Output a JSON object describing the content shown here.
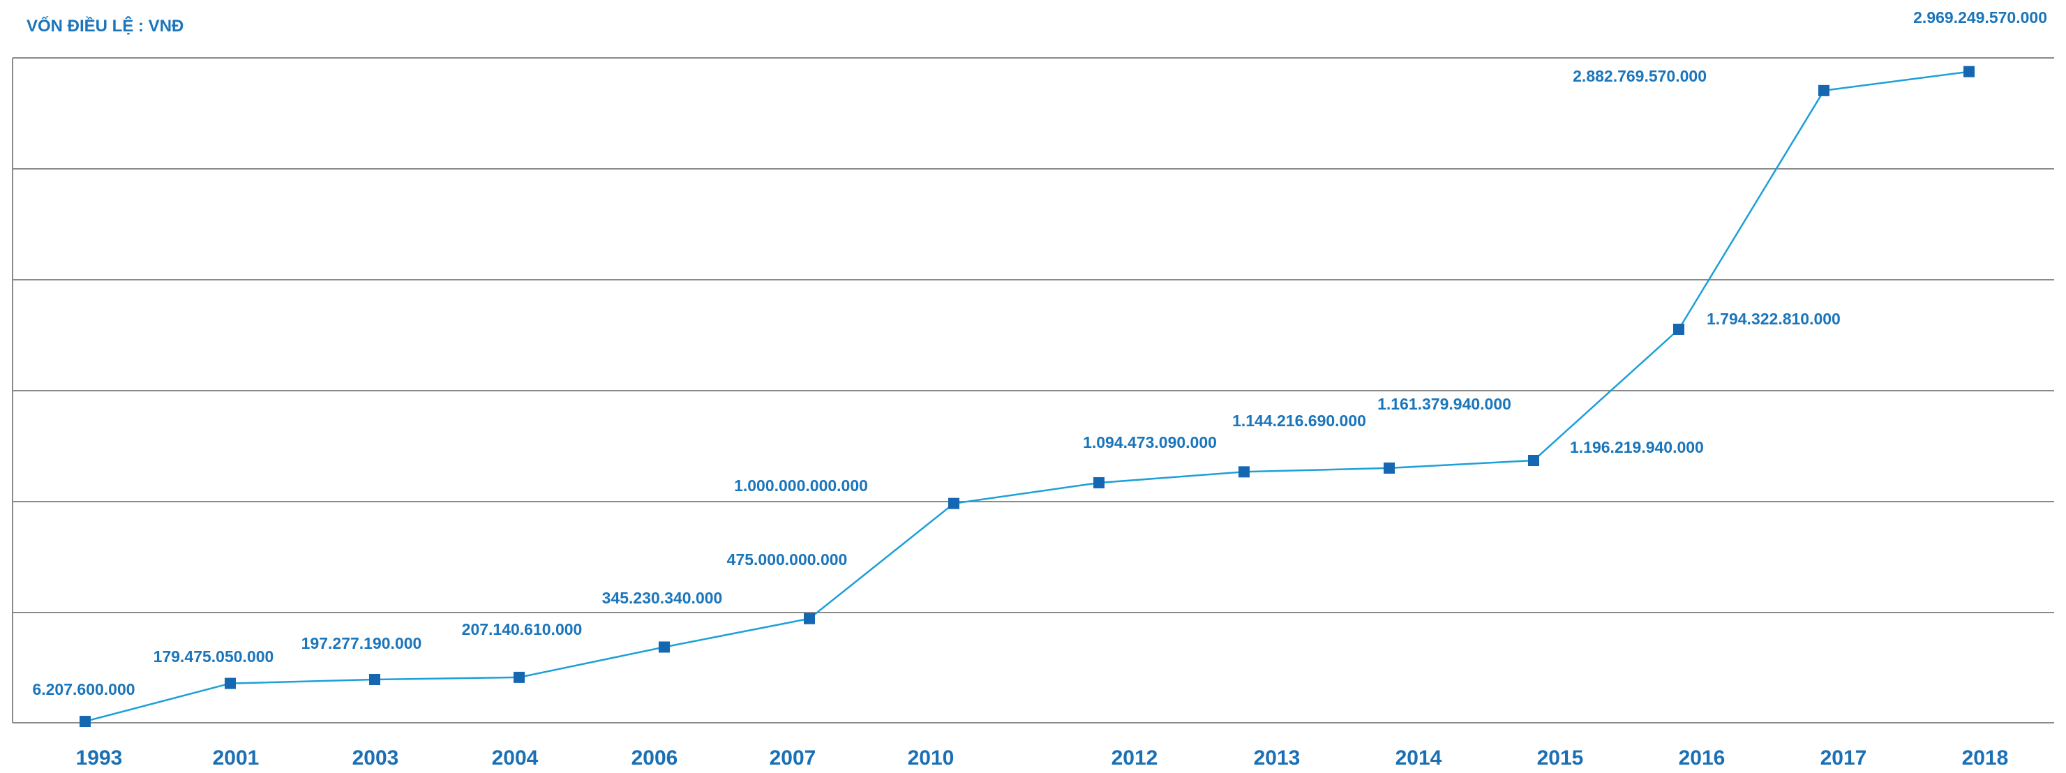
{
  "chart_data": {
    "type": "line",
    "title": "VỐN ĐIỀU LỆ : VNĐ",
    "xlabel": "",
    "ylabel": "",
    "categories": [
      "1993",
      "2001",
      "2003",
      "2004",
      "2006",
      "2007",
      "2010",
      "2012",
      "2013",
      "2014",
      "2015",
      "2016",
      "2017",
      "2018"
    ],
    "values": [
      6207600000,
      179475050000,
      197277190000,
      207140610000,
      345230340000,
      475000000000,
      1000000000000,
      1094473090000,
      1144216690000,
      1161379940000,
      1196219940000,
      1794322810000,
      2882769570000,
      2969249570000
    ],
    "data_labels": [
      "6.207.600.000",
      "179.475.050.000",
      "197.277.190.000",
      "207.140.610.000",
      "345.230.340.000",
      "475.000.000.000",
      "1.000.000.000.000",
      "1.094.473.090.000",
      "1.144.216.690.000",
      "1.161.379.940.000",
      "1.196.219.940.000",
      "1.794.322.810.000",
      "2.882.769.570.000",
      "2.969.249.570.000"
    ],
    "ylim": [
      0,
      3000000000000
    ],
    "grid": true,
    "legend": "none"
  },
  "colors": {
    "line": "#1ba0d8",
    "marker": "#1667b2",
    "label": "#1a75bb",
    "tick": "#1a6fb5",
    "grid": "#8a8a8a"
  }
}
